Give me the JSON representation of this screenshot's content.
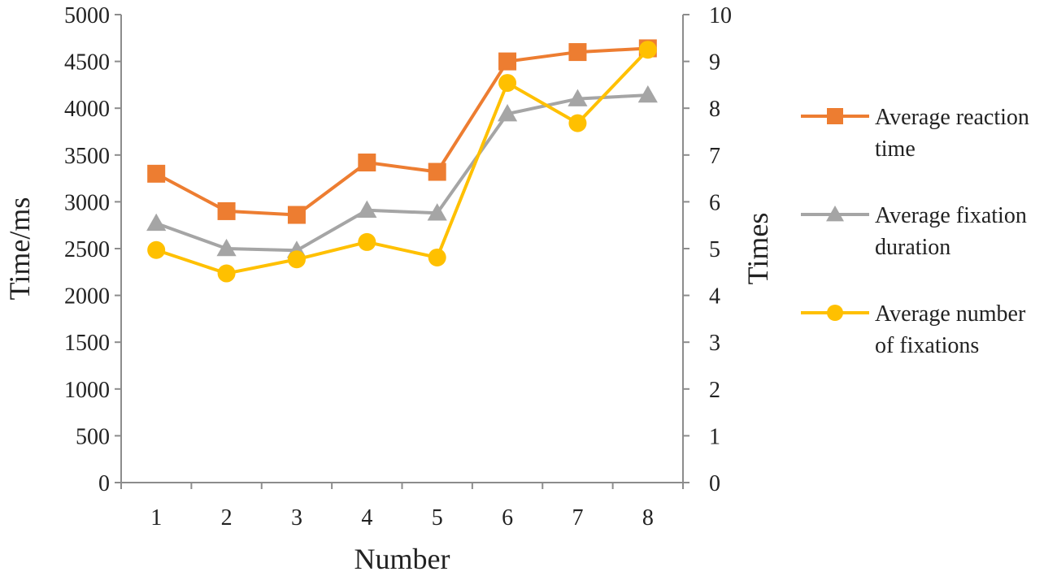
{
  "chart_data": {
    "type": "line",
    "title": "",
    "xlabel": "Number",
    "ylabel_left": "Time/ms",
    "ylabel_right": "Times",
    "categories": [
      "1",
      "2",
      "3",
      "4",
      "5",
      "6",
      "7",
      "8"
    ],
    "ylim_left": [
      0,
      5000
    ],
    "ylim_right": [
      0,
      10
    ],
    "yticks_left": [
      "0",
      "500",
      "1000",
      "1500",
      "2000",
      "2500",
      "3000",
      "3500",
      "4000",
      "4500",
      "5000"
    ],
    "yticks_right": [
      "0",
      "1",
      "2",
      "3",
      "4",
      "5",
      "6",
      "7",
      "8",
      "9",
      "10"
    ],
    "grid": false,
    "legend_position": "right",
    "series": [
      {
        "name": "Average reaction time",
        "legend_lines": [
          "Average reaction",
          "time"
        ],
        "axis": "left",
        "marker": "square",
        "color": "#ED7D31",
        "values": [
          3300,
          2900,
          2860,
          3420,
          3320,
          4500,
          4600,
          4640
        ]
      },
      {
        "name": "Average fixation duration",
        "legend_lines": [
          "Average fixation",
          "duration"
        ],
        "axis": "left",
        "marker": "triangle",
        "color": "#A5A5A5",
        "values": [
          2770,
          2500,
          2480,
          2910,
          2880,
          3940,
          4100,
          4140
        ]
      },
      {
        "name": "Average number of fixations",
        "legend_lines": [
          "Average number",
          "of fixations"
        ],
        "axis": "right",
        "marker": "circle",
        "color": "#FFC000",
        "values": [
          4.97,
          4.47,
          4.77,
          5.14,
          4.81,
          8.54,
          7.68,
          9.25
        ]
      }
    ]
  }
}
